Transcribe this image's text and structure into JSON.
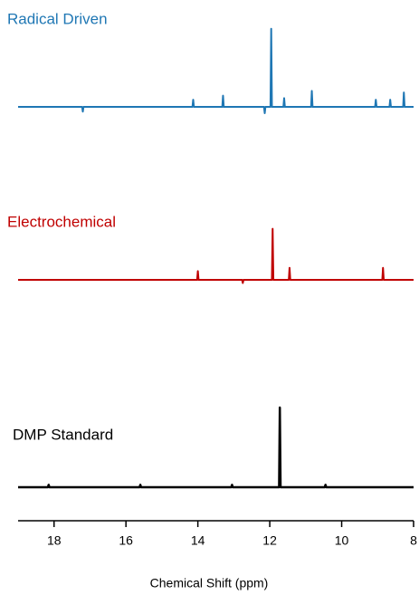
{
  "chart_data": {
    "type": "line",
    "xlabel": "Chemical Shift (ppm)",
    "xlim": [
      19,
      8
    ],
    "xticks": [
      18,
      16,
      14,
      12,
      10,
      8
    ],
    "series": [
      {
        "name": "Radical Driven",
        "color": "#1f77b4",
        "x": [
          19,
          17.22,
          17.2,
          17.18,
          14.15,
          14.13,
          14.11,
          13.32,
          13.3,
          13.28,
          12.16,
          12.14,
          12.12,
          11.98,
          11.96,
          11.94,
          11.62,
          11.6,
          11.58,
          10.85,
          10.83,
          10.81,
          9.07,
          9.05,
          9.03,
          8.67,
          8.65,
          8.63,
          8.29,
          8.27,
          8.25,
          8
        ],
        "values": [
          0,
          0,
          -6,
          0,
          0,
          9,
          0,
          0,
          14,
          0,
          0,
          -8,
          0,
          0,
          98,
          0,
          0,
          11,
          0,
          0,
          20,
          0,
          0,
          9,
          0,
          0,
          9,
          0,
          0,
          18,
          0,
          0
        ]
      },
      {
        "name": "Electrochemical",
        "color": "#c00000",
        "x": [
          19,
          14.02,
          14,
          13.98,
          12.77,
          12.75,
          12.73,
          11.94,
          11.92,
          11.9,
          11.47,
          11.45,
          11.43,
          8.87,
          8.85,
          8.83,
          8
        ],
        "values": [
          0,
          0,
          11,
          0,
          0,
          -4,
          0,
          0,
          64,
          0,
          0,
          15,
          0,
          0,
          15,
          0,
          0
        ]
      },
      {
        "name": "DMP Standard",
        "color": "#000000",
        "x": [
          19,
          18.17,
          18.15,
          18.13,
          15.62,
          15.6,
          15.58,
          13.07,
          13.05,
          13.03,
          11.74,
          11.72,
          11.7,
          10.47,
          10.45,
          10.43,
          8
        ],
        "values": [
          0,
          0,
          3,
          0,
          0,
          3,
          0,
          0,
          3,
          0,
          0,
          100,
          0,
          0,
          3,
          0,
          0
        ]
      }
    ]
  }
}
